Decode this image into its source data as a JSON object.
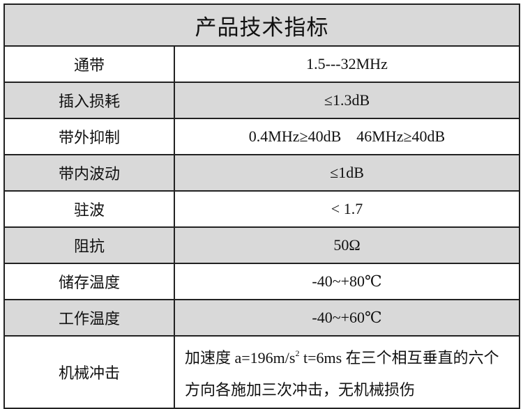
{
  "title": "产品技术指标",
  "colors": {
    "row_shade": "#d9d9d9",
    "border": "#222222"
  },
  "rows": [
    {
      "label": "通带",
      "value": "1.5---32MHz"
    },
    {
      "label": "插入损耗",
      "value": "≤1.3dB"
    },
    {
      "label": "带外抑制",
      "value": "0.4MHz≥40dB    46MHz≥40dB"
    },
    {
      "label": "带内波动",
      "value": "≤1dB"
    },
    {
      "label": "驻波",
      "value": "< 1.7"
    },
    {
      "label": "阻抗",
      "value": "50Ω"
    },
    {
      "label": "储存温度",
      "value": "-40~+80℃"
    },
    {
      "label": "工作温度",
      "value": "-40~+60℃"
    }
  ],
  "shock": {
    "label": "机械冲击",
    "text_a": "加速度 a=196m/s",
    "sup": "2",
    "text_b": " t=6ms  在三个相互垂直的六个方向各施加三次冲击，无机械损伤"
  }
}
